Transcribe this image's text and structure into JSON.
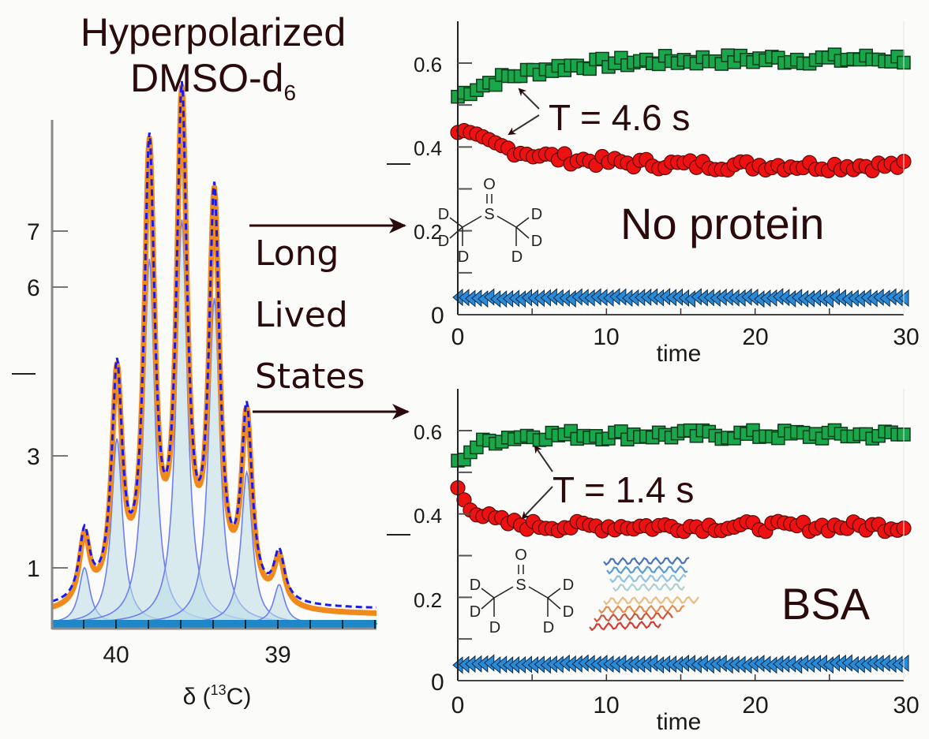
{
  "title": {
    "line1": "Hyperpolarized",
    "line2_main": "DMSO-d",
    "line2_sub": "6"
  },
  "side_label": {
    "line1": "Long",
    "line2": "Lived",
    "line3": "States"
  },
  "colors": {
    "fit_orange": "#f08a1c",
    "sum_blue_dashed": "#1a1aee",
    "component_line": "#6e7ef0",
    "component_fill": "#bcdde6",
    "green_squares": "#1aa64a",
    "red_circles": "#ee1111",
    "blue_triangles": "#2a8ad6",
    "text": "#2a0a0a"
  },
  "chart_data": [
    {
      "type": "line",
      "name": "spectrum",
      "title": "Hyperpolarized DMSO-d6",
      "xlabel": "δ (13C)",
      "xlabel_main": "δ (",
      "xlabel_sup": "13",
      "xlabel_end": "C)",
      "ylabel": "",
      "x_reversed": true,
      "xlim": [
        40.3,
        38.6
      ],
      "ylim": [
        0,
        10
      ],
      "x_ticks": [
        "40",
        "39"
      ],
      "y_ticks": [
        "7",
        "6",
        "3",
        "1"
      ],
      "y_tick_values": [
        7.0,
        6.0,
        3.0,
        1.0
      ],
      "components": [
        {
          "center": 40.13,
          "height": 1.0,
          "width": 0.035
        },
        {
          "center": 39.96,
          "height": 3.3,
          "width": 0.035
        },
        {
          "center": 39.79,
          "height": 6.5,
          "width": 0.035
        },
        {
          "center": 39.62,
          "height": 7.2,
          "width": 0.035
        },
        {
          "center": 39.45,
          "height": 5.8,
          "width": 0.035
        },
        {
          "center": 39.28,
          "height": 2.7,
          "width": 0.035
        },
        {
          "center": 39.11,
          "height": 0.7,
          "width": 0.035
        }
      ],
      "series": [
        {
          "name": "experimental",
          "style": "solid-orange"
        },
        {
          "name": "fit sum",
          "style": "dashed-blue"
        },
        {
          "name": "Lorentzian components",
          "style": "thin-blue-filled"
        }
      ]
    },
    {
      "type": "scatter",
      "name": "no-protein",
      "annotation": "T = 4.6 s",
      "label": "No protein",
      "xlabel": "time",
      "ylabel": "",
      "xlim": [
        0,
        30
      ],
      "ylim": [
        0,
        0.7
      ],
      "x_ticks": [
        "0",
        "10",
        "20",
        "30"
      ],
      "y_ticks": [
        "0",
        "0.2",
        "0.4",
        "0.6"
      ],
      "series": [
        {
          "name": "green",
          "marker": "square",
          "start": 0.52,
          "end": 0.61,
          "tau": 4.6,
          "noise": 0.012
        },
        {
          "name": "red",
          "marker": "circle",
          "start": 0.44,
          "end": 0.355,
          "tau": 4.6,
          "noise": 0.012
        },
        {
          "name": "blue",
          "marker": "triangle",
          "start": 0.04,
          "end": 0.04,
          "tau": 1,
          "noise": 0.003
        }
      ]
    },
    {
      "type": "scatter",
      "name": "bsa",
      "annotation": "T = 1.4 s",
      "label": "BSA",
      "xlabel": "time",
      "ylabel": "",
      "xlim": [
        0,
        30
      ],
      "ylim": [
        0,
        0.7
      ],
      "x_ticks": [
        "0",
        "10",
        "20",
        "30"
      ],
      "y_ticks": [
        "0",
        "0.2",
        "0.4",
        "0.6"
      ],
      "series": [
        {
          "name": "green",
          "marker": "square",
          "start": 0.52,
          "end": 0.59,
          "tau": 1.4,
          "noise": 0.012
        },
        {
          "name": "red",
          "marker": "circle",
          "start": 0.46,
          "end": 0.37,
          "tau": 1.4,
          "noise": 0.012
        },
        {
          "name": "blue",
          "marker": "triangle",
          "start": 0.04,
          "end": 0.04,
          "tau": 1,
          "noise": 0.003
        }
      ]
    }
  ],
  "molecule": {
    "top_atom": "O",
    "center_atom": "S",
    "sub_atom": "D"
  }
}
